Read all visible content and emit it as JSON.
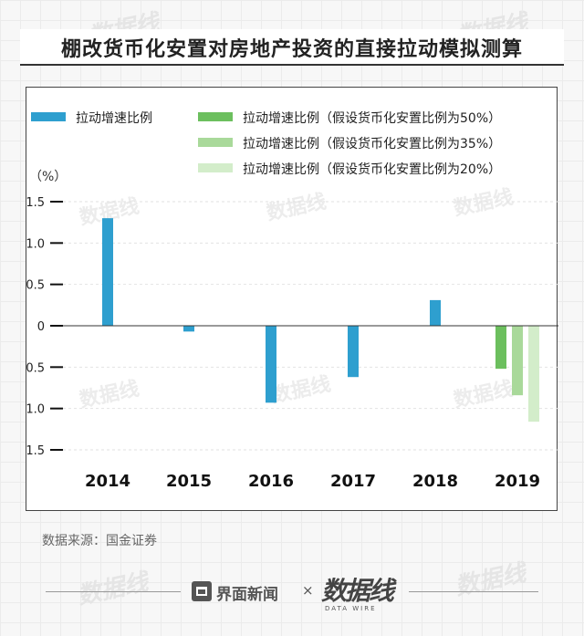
{
  "title": "棚改货币化安置对房地产投资的直接拉动模拟测算",
  "source": "数据来源：国金证券",
  "footer": {
    "brand": "界面新闻",
    "separator": "×",
    "partner": "数据线",
    "partner_sub": "DATA WIRE"
  },
  "watermark_text": "数据线",
  "colors": {
    "actual": "#2e9fcf",
    "assume50": "#6cbf5e",
    "assume35": "#a9d99a",
    "assume20": "#d3edca"
  },
  "chart_data": {
    "type": "bar",
    "title": "",
    "ylabel": "（%）",
    "xlabel": "",
    "categories": [
      "2014",
      "2015",
      "2016",
      "2017",
      "2018",
      "2019"
    ],
    "ylim": [
      -1.5,
      1.5
    ],
    "yticks": [
      "1.5",
      "1.0",
      "0.5",
      "0",
      "-0.5",
      "-1.0",
      "-1.5"
    ],
    "grid": true,
    "legend_position": "top",
    "series": [
      {
        "name": "拉动增速比例",
        "values": [
          1.3,
          -0.07,
          -0.93,
          -0.62,
          0.31,
          null
        ]
      },
      {
        "name": "拉动增速比例（假设货币化安置比例为50%）",
        "values": [
          null,
          null,
          null,
          null,
          null,
          -0.52
        ]
      },
      {
        "name": "拉动增速比例（假设货币化安置比例为35%）",
        "values": [
          null,
          null,
          null,
          null,
          null,
          -0.84
        ]
      },
      {
        "name": "拉动增速比例（假设货币化安置比例为20%）",
        "values": [
          null,
          null,
          null,
          null,
          null,
          -1.16
        ]
      }
    ]
  }
}
